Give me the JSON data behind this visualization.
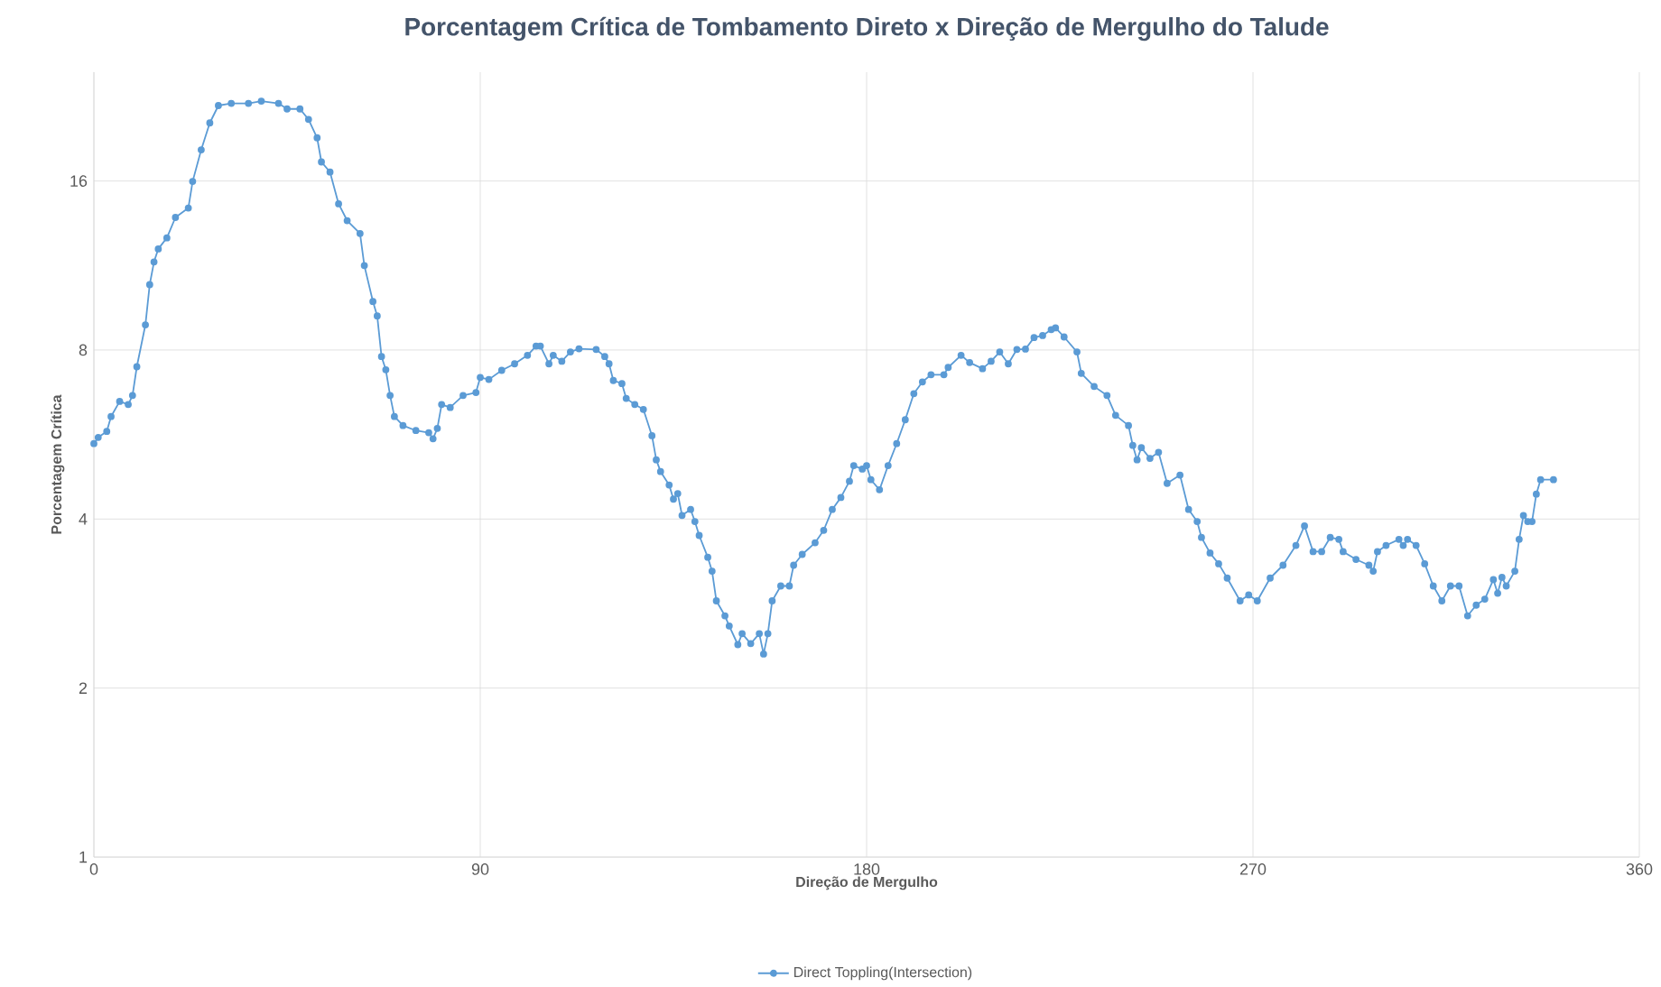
{
  "chart_data": {
    "type": "line",
    "title": "Porcentagem Crítica de Tombamento Direto x Direção de Mergulho do Talude",
    "xlabel": "Direção de Mergulho",
    "ylabel": "Porcentagem Crítica",
    "x": [
      0,
      1,
      3,
      4,
      6,
      8,
      9,
      10,
      12,
      13,
      14,
      15,
      17,
      19,
      22,
      23,
      25,
      27,
      29,
      32,
      36,
      39,
      43,
      45,
      48,
      50,
      52,
      53,
      55,
      57,
      59,
      62,
      63,
      65,
      66,
      67,
      68,
      69,
      70,
      72,
      75,
      78,
      79,
      80,
      81,
      83,
      86,
      89,
      90,
      92,
      95,
      98,
      101,
      103,
      104,
      106,
      107,
      109,
      111,
      113,
      117,
      119,
      120,
      121,
      123,
      124,
      126,
      128,
      130,
      131,
      132,
      134,
      135,
      136,
      137,
      139,
      140,
      141,
      143,
      144,
      145,
      147,
      148,
      150,
      151,
      153,
      155,
      156,
      157,
      158,
      160,
      162,
      163,
      165,
      168,
      170,
      172,
      174,
      176,
      177,
      179,
      180,
      181,
      183,
      185,
      187,
      189,
      191,
      193,
      195,
      198,
      199,
      202,
      204,
      207,
      209,
      211,
      213,
      215,
      217,
      219,
      221,
      223,
      224,
      226,
      229,
      230,
      233,
      236,
      238,
      241,
      242,
      243,
      244,
      246,
      248,
      250,
      253,
      255,
      257,
      258,
      260,
      262,
      264,
      267,
      269,
      271,
      274,
      277,
      280,
      282,
      284,
      286,
      288,
      290,
      291,
      294,
      297,
      298,
      299,
      301,
      304,
      305,
      306,
      308,
      310,
      312,
      314,
      316,
      318,
      320,
      322,
      324,
      326,
      327,
      328,
      329,
      331,
      332,
      333,
      334,
      335,
      336,
      337,
      340
    ],
    "series": [
      {
        "name": "Direct Toppling(Intersection)",
        "color": "#5b9bd5",
        "values": [
          5.45,
          5.59,
          5.73,
          6.09,
          6.48,
          6.4,
          6.64,
          7.47,
          8.87,
          10.46,
          11.48,
          12.11,
          12.67,
          13.78,
          14.32,
          15.97,
          18.18,
          20.3,
          21.8,
          22.0,
          22.0,
          22.2,
          22.0,
          21.5,
          21.5,
          20.6,
          19.1,
          17.3,
          16.6,
          14.57,
          13.6,
          12.9,
          11.31,
          9.76,
          9.2,
          7.79,
          7.38,
          6.64,
          6.09,
          5.87,
          5.75,
          5.7,
          5.56,
          5.8,
          6.4,
          6.32,
          6.64,
          6.72,
          7.15,
          7.09,
          7.36,
          7.56,
          7.83,
          8.13,
          8.13,
          7.56,
          7.83,
          7.64,
          7.94,
          8.04,
          8.02,
          7.79,
          7.56,
          7.06,
          6.97,
          6.56,
          6.4,
          6.27,
          5.63,
          5.1,
          4.86,
          4.6,
          4.34,
          4.44,
          4.06,
          4.16,
          3.96,
          3.74,
          3.42,
          3.23,
          2.86,
          2.69,
          2.58,
          2.39,
          2.5,
          2.4,
          2.5,
          2.3,
          2.5,
          2.86,
          3.04,
          3.04,
          3.31,
          3.46,
          3.63,
          3.82,
          4.16,
          4.37,
          4.67,
          4.98,
          4.91,
          4.98,
          4.7,
          4.51,
          4.98,
          5.45,
          6.01,
          6.69,
          7.02,
          7.23,
          7.23,
          7.45,
          7.83,
          7.6,
          7.41,
          7.64,
          7.94,
          7.56,
          8.02,
          8.03,
          8.42,
          8.49,
          8.7,
          8.76,
          8.44,
          7.94,
          7.27,
          6.89,
          6.64,
          6.12,
          5.87,
          5.41,
          5.1,
          5.36,
          5.13,
          5.26,
          4.63,
          4.79,
          4.16,
          3.96,
          3.71,
          3.48,
          3.33,
          3.14,
          2.86,
          2.93,
          2.86,
          3.14,
          3.31,
          3.59,
          3.89,
          3.5,
          3.5,
          3.71,
          3.68,
          3.5,
          3.39,
          3.31,
          3.23,
          3.5,
          3.59,
          3.68,
          3.59,
          3.68,
          3.59,
          3.33,
          3.04,
          2.86,
          3.04,
          3.04,
          2.69,
          2.81,
          2.88,
          3.12,
          2.95,
          3.15,
          3.04,
          3.23,
          3.68,
          4.06,
          3.96,
          3.96,
          4.43,
          4.7,
          4.7
        ]
      }
    ],
    "xlim": [
      0,
      360
    ],
    "xticks": [
      0,
      90,
      180,
      270,
      360
    ],
    "ylim": [
      1,
      25
    ],
    "yticks": [
      1,
      2,
      4,
      8,
      16
    ],
    "log": "y",
    "grid": true,
    "legend": "bottom",
    "marker": "circle",
    "line_style": "solid"
  }
}
